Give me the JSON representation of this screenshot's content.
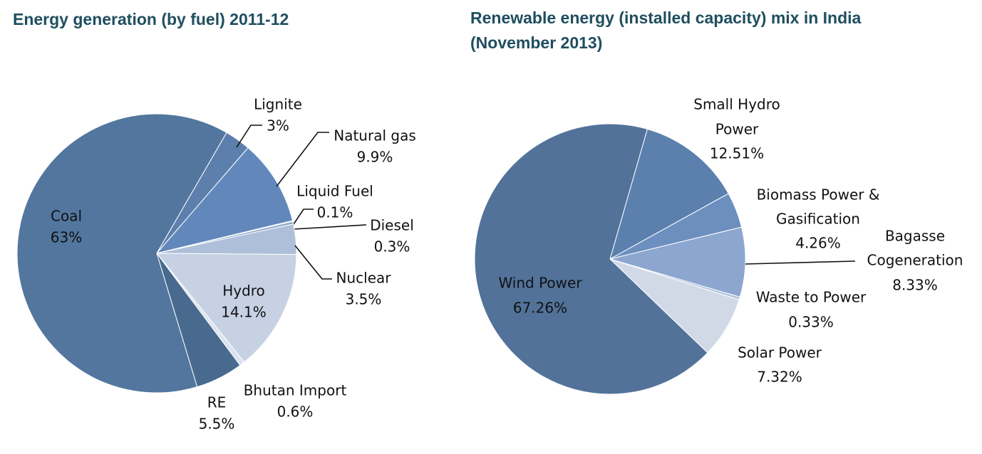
{
  "chart_data": [
    {
      "type": "pie",
      "title": "Energy generation (by fuel) 2011-12",
      "start_angle_deg": -60,
      "slices": [
        {
          "name": "Lignite",
          "value": 3,
          "value_label": "3%",
          "color": "#5c7fac"
        },
        {
          "name": "Natural gas",
          "value": 9.9,
          "value_label": "9.9%",
          "color": "#6288bb"
        },
        {
          "name": "Liquid Fuel",
          "value": 0.1,
          "value_label": "0.1%",
          "color": "#7d9cc6"
        },
        {
          "name": "Diesel",
          "value": 0.3,
          "value_label": "0.3%",
          "color": "#8ea8cd"
        },
        {
          "name": "Nuclear",
          "value": 3.5,
          "value_label": "3.5%",
          "color": "#aebfd9"
        },
        {
          "name": "Hydro",
          "value": 14.1,
          "value_label": "14.1%",
          "color": "#c6d1e4"
        },
        {
          "name": "Bhutan Import",
          "value": 0.6,
          "value_label": "0.6%",
          "color": "#dce3ef"
        },
        {
          "name": "RE",
          "value": 5.5,
          "value_label": "5.5%",
          "color": "#486a8f"
        },
        {
          "name": "Coal",
          "value": 63,
          "value_label": "63%",
          "color": "#52769e"
        }
      ]
    },
    {
      "type": "pie",
      "title": "Renewable energy (installed capacity) mix in India (November 2013)",
      "start_angle_deg": -74,
      "slices": [
        {
          "name": "Small Hydro Power",
          "value": 12.51,
          "value_label": "12.51%",
          "color": "#5b80ae"
        },
        {
          "name": "Biomass Power & Gasification",
          "value": 4.26,
          "value_label": "4.26%",
          "color": "#6d8fc0"
        },
        {
          "name": "Bagasse Cogeneration",
          "value": 8.33,
          "value_label": "8.33%",
          "color": "#8ca6cf"
        },
        {
          "name": "Waste to Power",
          "value": 0.33,
          "value_label": "0.33%",
          "color": "#b2c2dc"
        },
        {
          "name": "Solar Power",
          "value": 7.32,
          "value_label": "7.32%",
          "color": "#d1d9e7"
        },
        {
          "name": "Wind Power",
          "value": 67.26,
          "value_label": "67.26%",
          "color": "#52729a"
        }
      ]
    }
  ]
}
